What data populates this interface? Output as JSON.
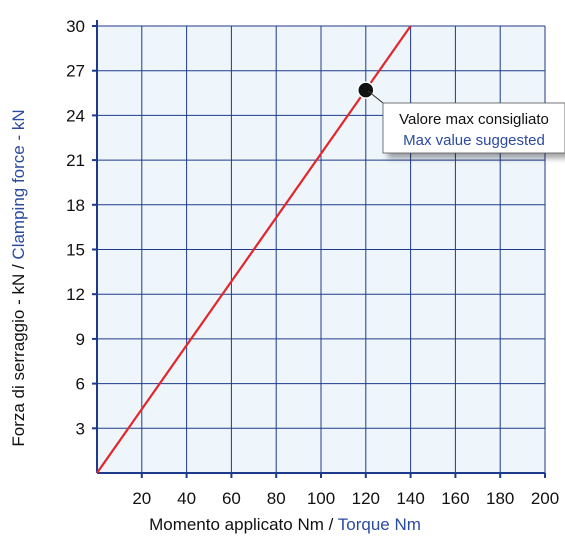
{
  "chart_data": {
    "type": "line",
    "xlabel_it": "Momento applicato Nm",
    "xlabel_sep": " / ",
    "xlabel_en": "Torque Nm",
    "ylabel_it": "Forza di serraggio - kN",
    "ylabel_sep": " / ",
    "ylabel_en": "Clamping force - kN",
    "xlim": [
      0,
      200
    ],
    "ylim": [
      0,
      30
    ],
    "x_ticks": [
      "20",
      "40",
      "60",
      "80",
      "100",
      "120",
      "140",
      "160",
      "180",
      "200"
    ],
    "y_ticks": [
      "3",
      "6",
      "9",
      "12",
      "15",
      "18",
      "21",
      "24",
      "27",
      "30"
    ],
    "grid": true,
    "series": [
      {
        "x": [
          0,
          140
        ],
        "y": [
          0,
          30
        ]
      }
    ],
    "highlight_point": {
      "x": 120,
      "y": 25.7
    },
    "annotation": {
      "line1": "Valore max consigliato",
      "line2": "Max value suggested"
    }
  },
  "colors": {
    "plot_background": "#eef6fc",
    "grid": "#1e3a8a",
    "axis": "#1e3a8a",
    "line": "#e3262b",
    "english_text": "#2b4aa0",
    "italian_text": "#111111",
    "point": "#111111"
  }
}
